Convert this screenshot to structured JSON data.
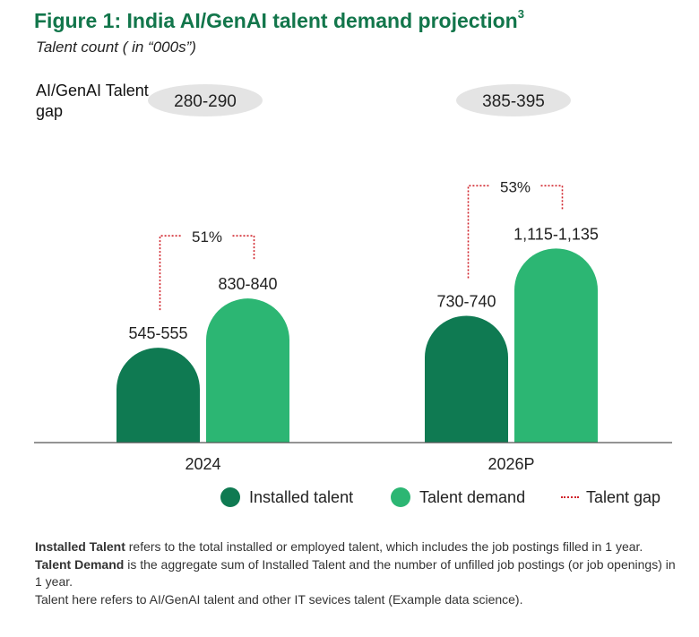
{
  "title": "Figure 1: India AI/GenAI talent demand projection",
  "title_superscript": "3",
  "subtitle": "Talent count ( in “000s”)",
  "gap_heading": "AI/GenAI Talent gap",
  "colors": {
    "installed": "#0f7a52",
    "demand": "#2cb673",
    "gap_line": "#d0232b",
    "title": "#12764b",
    "pill": "#e4e4e4"
  },
  "chart_data": {
    "type": "bar",
    "categories": [
      "2024",
      "2026P"
    ],
    "series": [
      {
        "name": "Installed talent",
        "values": [
          550,
          735
        ],
        "labels": [
          "545-555",
          "730-740"
        ]
      },
      {
        "name": "Talent demand",
        "values": [
          835,
          1125
        ],
        "labels": [
          "830-840",
          "1,115-1,135"
        ]
      }
    ],
    "talent_gap": {
      "name": "Talent gap",
      "labels": [
        "280-290",
        "385-395"
      ],
      "percent_labels": [
        "51%",
        "53%"
      ]
    },
    "ylim": [
      0,
      1200
    ],
    "grid": false,
    "legend_position": "bottom"
  },
  "legend": {
    "installed": "Installed talent",
    "demand": "Talent demand",
    "gap": "Talent gap"
  },
  "footnotes": [
    {
      "term": "Installed Talent",
      "text": " refers to the total installed or employed talent, which includes the job postings filled in 1 year."
    },
    {
      "term": "Talent Demand",
      "text": " is the aggregate sum of Installed Talent and the number of unfilled job postings (or job openings) in 1 year."
    },
    {
      "term": "",
      "text": "Talent here refers to AI/GenAI talent and other IT sevices talent (Example data science)."
    }
  ]
}
